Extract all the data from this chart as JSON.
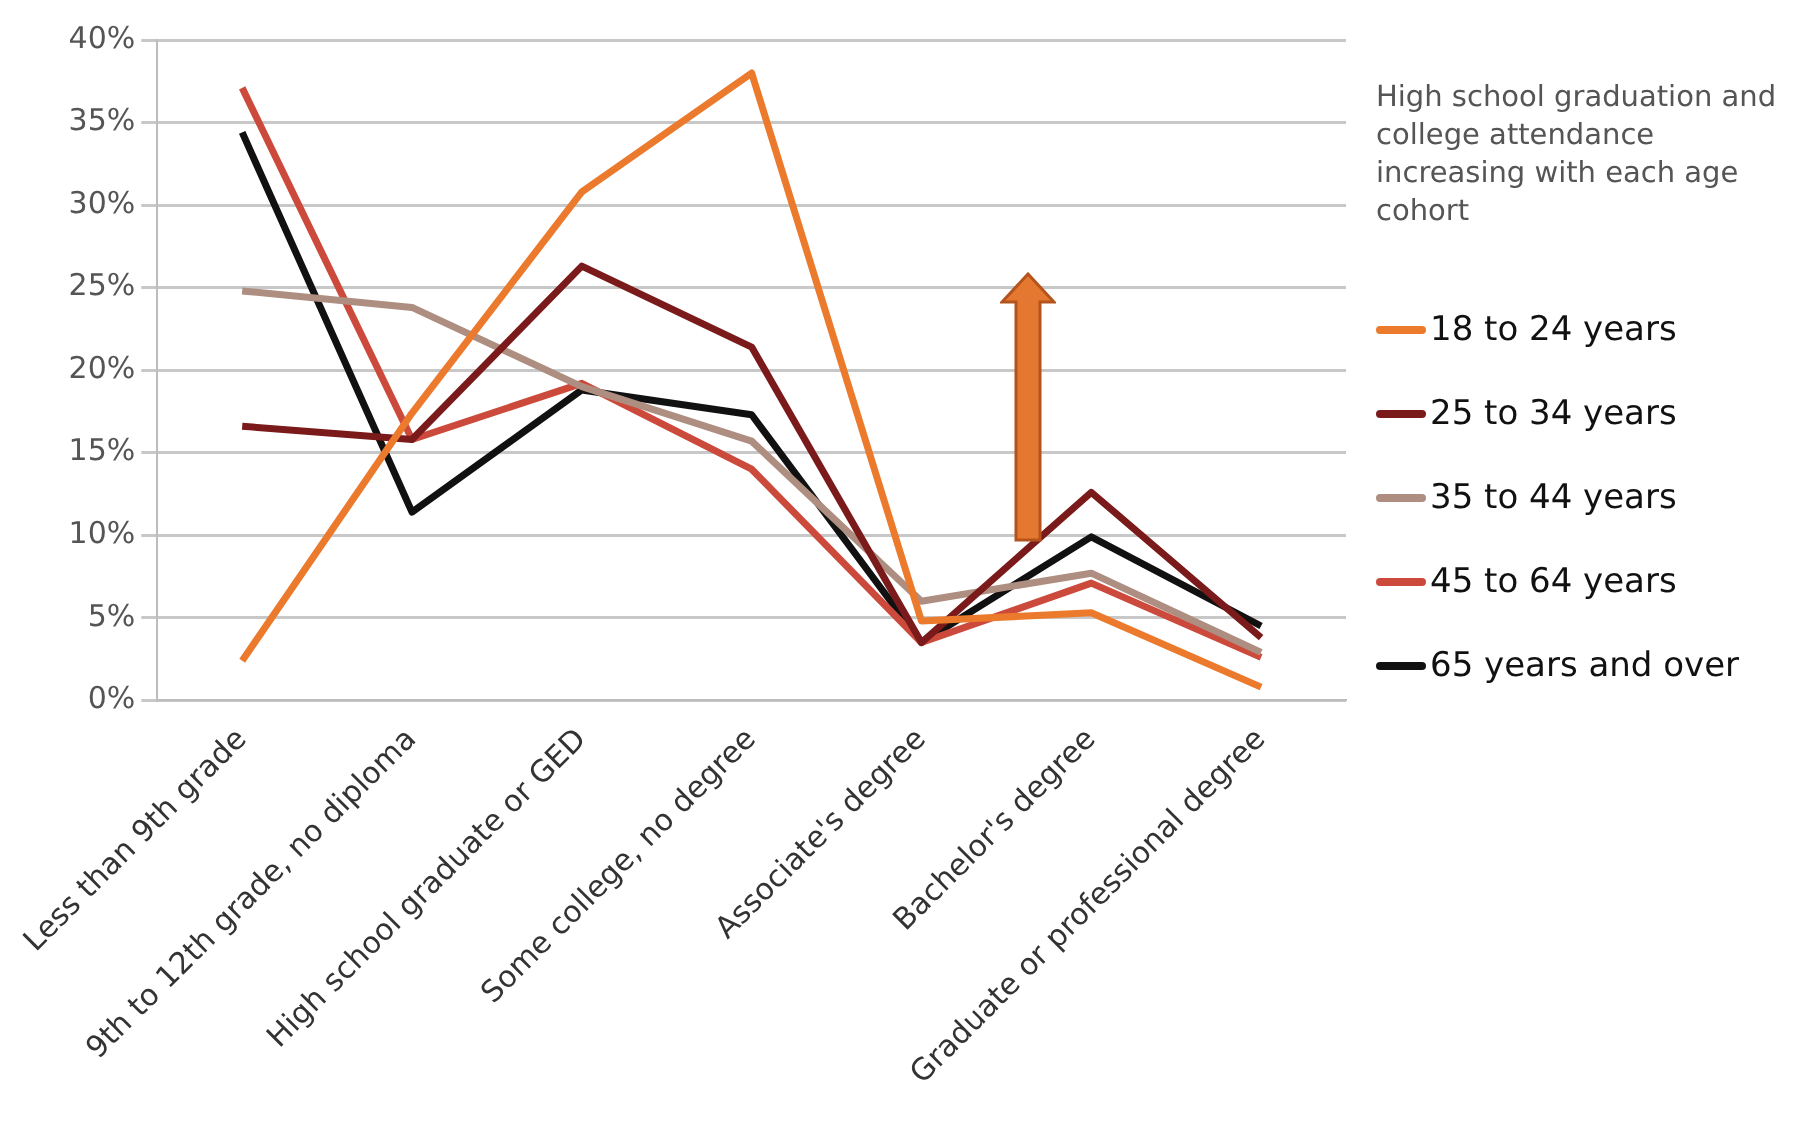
{
  "chart_data": {
    "type": "line",
    "legend_title": "High school graduation and college attendance increasing  with  each age cohort",
    "categories": [
      "Less than 9th grade",
      "9th to 12th grade, no diploma",
      "High school graduate or GED",
      "Some college, no degree",
      "Associate's degree",
      "Bachelor's degree",
      "Graduate or professional degree"
    ],
    "series": [
      {
        "name": "18 to 24 years",
        "color": "#ec7a2d",
        "values": [
          2.4,
          17.4,
          30.8,
          38,
          4.8,
          5.3,
          0.8
        ]
      },
      {
        "name": "25 to 34 years",
        "color": "#7b1a1a",
        "values": [
          16.6,
          15.8,
          26.3,
          21.4,
          3.5,
          12.6,
          3.8
        ]
      },
      {
        "name": "35 to 44 years",
        "color": "#ae8e80",
        "values": [
          24.8,
          23.8,
          19,
          15.7,
          6,
          7.7,
          2.9
        ]
      },
      {
        "name": "45 to 64 years",
        "color": "#cc4a3c",
        "values": [
          37.1,
          15.8,
          19.2,
          14,
          3.5,
          7.1,
          2.6
        ]
      },
      {
        "name": "65 years and over",
        "color": "#111111",
        "values": [
          34.4,
          11.4,
          18.8,
          17.3,
          3.5,
          9.9,
          4.5
        ]
      }
    ],
    "ylim": [
      0,
      40
    ],
    "yticks": [
      {
        "value": 0,
        "label": "0%"
      },
      {
        "value": 5,
        "label": "5%"
      },
      {
        "value": 10,
        "label": "10%"
      },
      {
        "value": 15,
        "label": "15%"
      },
      {
        "value": 20,
        "label": "20%"
      },
      {
        "value": 25,
        "label": "25%"
      },
      {
        "value": 30,
        "label": "30%"
      },
      {
        "value": 35,
        "label": "35%"
      },
      {
        "value": 40,
        "label": "40%"
      }
    ],
    "grid": "y",
    "legend": "right",
    "marker": "none",
    "line_style": "solid"
  }
}
